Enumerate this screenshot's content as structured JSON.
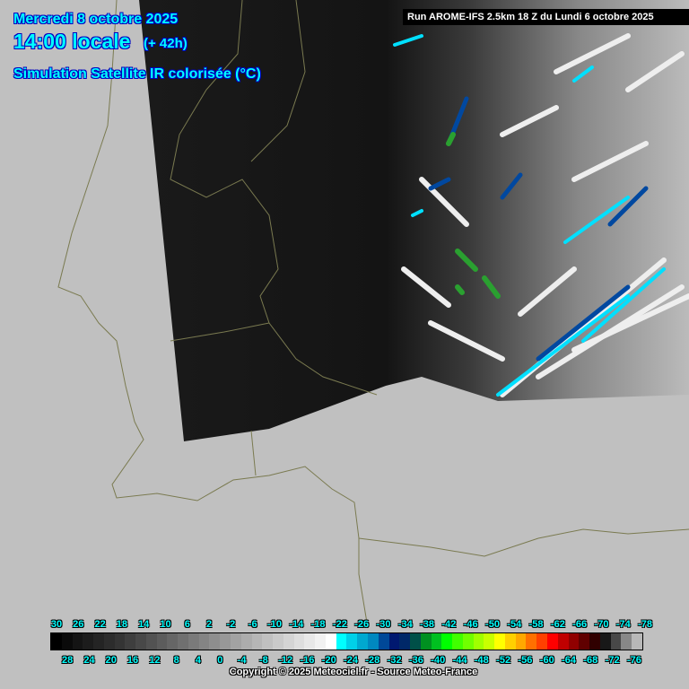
{
  "header": {
    "date": "Mercredi 8 octobre 2025",
    "time": "14:00 locale",
    "lead": "(+ 42h)",
    "product": "Simulation Satellite IR colorisée (°C)",
    "run": "Run AROME-IFS 2.5km 18 Z du Lundi 6 octobre 2025"
  },
  "legend": {
    "top_labels": [
      "30",
      "26",
      "22",
      "18",
      "14",
      "10",
      "6",
      "2",
      "-2",
      "-6",
      "-10",
      "-14",
      "-18",
      "-22",
      "-26",
      "-30",
      "-34",
      "-38",
      "-42",
      "-46",
      "-50",
      "-54",
      "-58",
      "-62",
      "-66",
      "-70",
      "-74",
      "-78"
    ],
    "bottom_labels": [
      "28",
      "24",
      "20",
      "16",
      "12",
      "8",
      "4",
      "0",
      "-4",
      "-8",
      "-12",
      "-16",
      "-20",
      "-24",
      "-28",
      "-32",
      "-36",
      "-40",
      "-44",
      "-48",
      "-52",
      "-56",
      "-60",
      "-64",
      "-68",
      "-72",
      "-76"
    ],
    "colors": [
      "#000000",
      "#0a0a0a",
      "#141414",
      "#1c1c1c",
      "#242424",
      "#2c2c2c",
      "#343434",
      "#3e3e3e",
      "#484848",
      "#525252",
      "#5c5c5c",
      "#666666",
      "#707070",
      "#7a7a7a",
      "#848484",
      "#8e8e8e",
      "#989898",
      "#a2a2a2",
      "#acacac",
      "#b6b6b6",
      "#c0c0c0",
      "#cacaca",
      "#d4d4d4",
      "#dedede",
      "#e8e8e8",
      "#f2f2f2",
      "#ffffff",
      "#00ffff",
      "#00d0e8",
      "#00a8d0",
      "#0088c0",
      "#004898",
      "#001870",
      "#002868",
      "#005048",
      "#009020",
      "#00c020",
      "#00ff00",
      "#40ff00",
      "#70ff00",
      "#a0ff00",
      "#c8ff00",
      "#ffff00",
      "#ffd000",
      "#ffa800",
      "#ff7000",
      "#ff4000",
      "#ff0000",
      "#c00000",
      "#900000",
      "#600000",
      "#300000",
      "#181818",
      "#484848",
      "#888888",
      "#b8b8b8"
    ]
  },
  "copyright": "Copyright © 2025 Meteociel.fr - Source Meteo-France"
}
